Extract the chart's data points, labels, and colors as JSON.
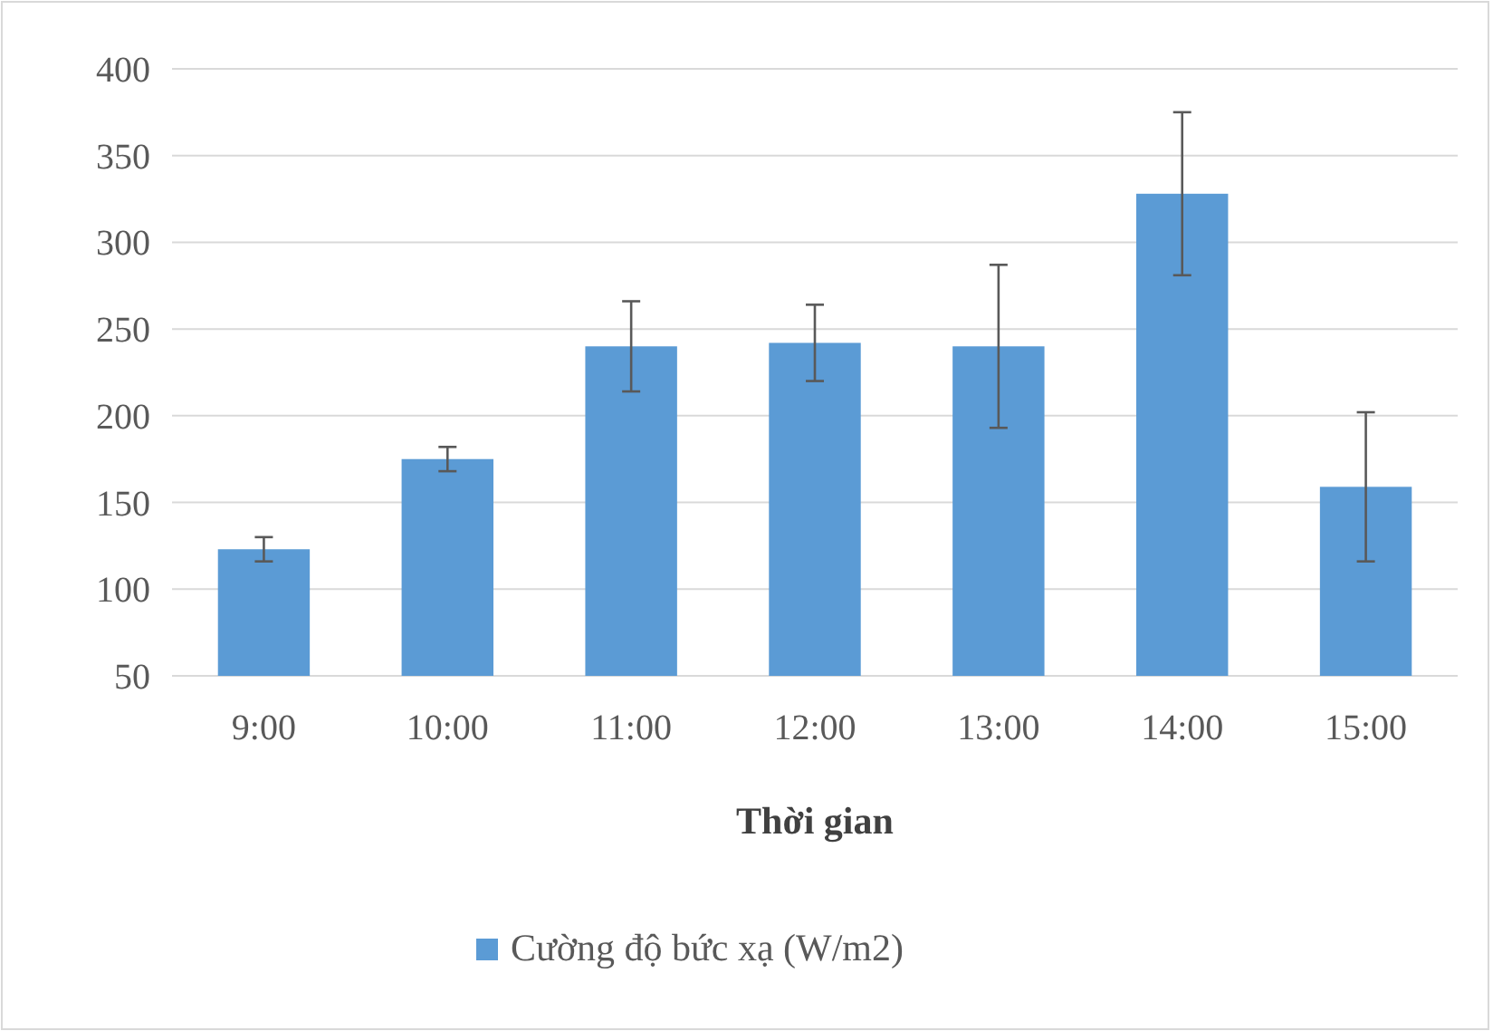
{
  "chart_data": {
    "type": "bar",
    "xlabel": "Thời gian",
    "categories": [
      "9:00",
      "10:00",
      "11:00",
      "12:00",
      "13:00",
      "14:00",
      "15:00"
    ],
    "series": [
      {
        "name": "Cường độ bức xạ (W/m2)",
        "color": "#5b9bd5",
        "values": [
          123,
          175,
          240,
          242,
          240,
          328,
          159
        ],
        "errors": [
          7,
          7,
          26,
          22,
          47,
          47,
          43
        ]
      }
    ],
    "ylim": [
      50,
      400
    ],
    "yticks": [
      50,
      100,
      150,
      200,
      250,
      300,
      350,
      400
    ],
    "grid": "y",
    "legend": "bottom"
  }
}
